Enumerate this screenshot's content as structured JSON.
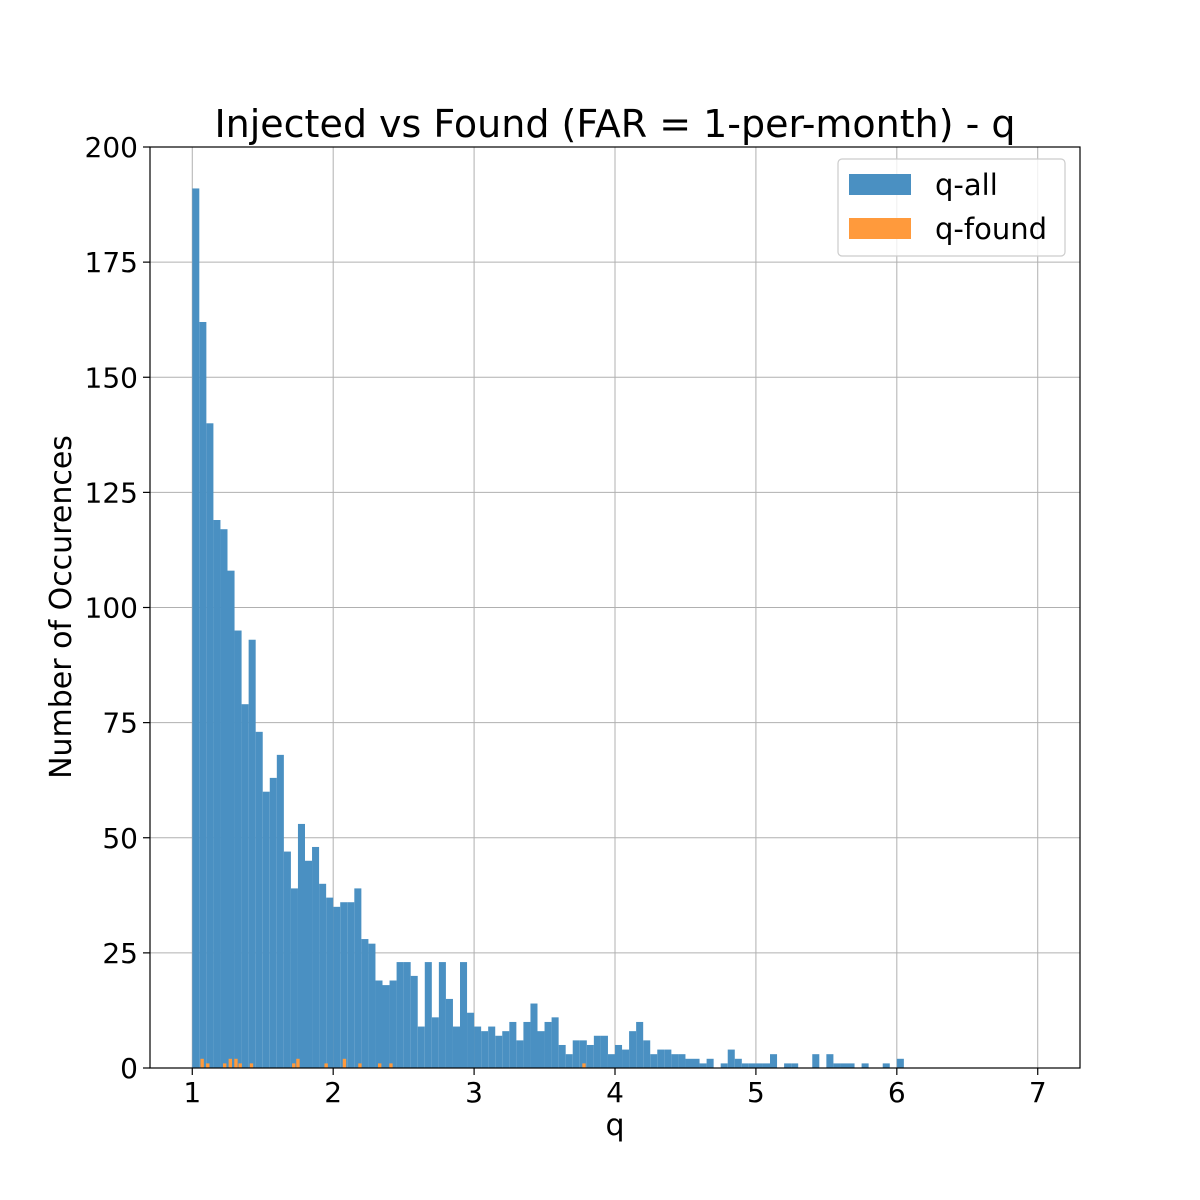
{
  "chart_data": {
    "type": "bar",
    "title": "Injected vs Found (FAR = 1-per-month) - q",
    "xlabel": "q",
    "ylabel": "Number of Occurences",
    "xlim": [
      0.7,
      7.3
    ],
    "ylim": [
      0,
      200
    ],
    "xticks": [
      1,
      2,
      3,
      4,
      5,
      6,
      7
    ],
    "yticks": [
      0,
      25,
      50,
      75,
      100,
      125,
      150,
      175,
      200
    ],
    "grid": true,
    "legend_position": "top-right",
    "bin_start": 1.0,
    "bin_width": 0.05,
    "series": [
      {
        "name": "q-all",
        "color": "#4a90c2",
        "values": [
          191,
          162,
          140,
          119,
          117,
          108,
          95,
          79,
          93,
          73,
          60,
          63,
          68,
          47,
          39,
          53,
          45,
          48,
          40,
          37,
          35,
          36,
          36,
          39,
          28,
          27,
          19,
          18,
          19,
          23,
          23,
          20,
          9,
          23,
          11,
          23,
          15,
          9,
          23,
          12,
          9,
          8,
          9,
          7,
          8,
          10,
          6,
          10,
          14,
          8,
          10,
          11,
          5,
          3,
          6,
          6,
          5,
          7,
          7,
          3,
          5,
          4,
          8,
          10,
          6,
          3,
          4,
          4,
          3,
          3,
          2,
          2,
          1,
          2,
          0,
          1,
          4,
          2,
          1,
          1,
          1,
          1,
          3,
          0,
          1,
          1,
          0,
          0,
          3,
          0,
          3,
          1,
          1,
          1,
          0,
          1,
          0,
          0,
          1,
          0,
          2
        ]
      },
      {
        "name": "q-found",
        "color": "#ff9a3c",
        "points": [
          [
            1.07,
            2
          ],
          [
            1.11,
            1
          ],
          [
            1.23,
            1
          ],
          [
            1.27,
            2
          ],
          [
            1.31,
            2
          ],
          [
            1.34,
            1
          ],
          [
            1.42,
            1
          ],
          [
            1.72,
            1
          ],
          [
            1.75,
            2
          ],
          [
            1.95,
            1
          ],
          [
            2.08,
            2
          ],
          [
            2.19,
            1
          ],
          [
            2.33,
            1
          ],
          [
            2.41,
            1
          ],
          [
            3.78,
            1
          ]
        ]
      }
    ]
  }
}
